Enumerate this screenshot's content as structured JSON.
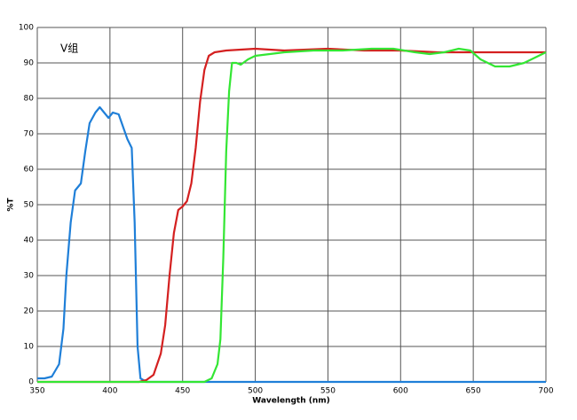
{
  "chart_data": {
    "type": "line",
    "annotation": "V组",
    "x_label": "Wavelength (nm)",
    "y_label": "%T",
    "xlim": [
      350,
      700
    ],
    "ylim": [
      0,
      100
    ],
    "xticks": [
      350,
      400,
      450,
      500,
      550,
      600,
      650,
      700
    ],
    "yticks": [
      0,
      10,
      20,
      30,
      40,
      50,
      60,
      70,
      80,
      90,
      100
    ],
    "grid": true,
    "series": [
      {
        "color": "#1f7fd8",
        "x": [
          350,
          355,
          360,
          365,
          368,
          370,
          373,
          376,
          380,
          383,
          386,
          390,
          393,
          396,
          399,
          402,
          406,
          409,
          412,
          415,
          417,
          419,
          421,
          425,
          430,
          700
        ],
        "values": [
          1,
          1,
          1.5,
          5,
          15,
          30,
          45,
          54,
          56,
          65,
          73,
          76,
          77.5,
          76,
          74.5,
          76,
          75.5,
          72,
          68.5,
          66,
          45,
          10,
          1,
          0,
          0,
          0
        ]
      },
      {
        "color": "#d42020",
        "x": [
          350,
          420,
          425,
          430,
          435,
          438,
          441,
          444,
          447,
          450,
          453,
          456,
          459,
          462,
          465,
          468,
          472,
          480,
          500,
          520,
          550,
          575,
          600,
          625,
          650,
          675,
          700
        ],
        "values": [
          0,
          0,
          0.5,
          2,
          8,
          16,
          30,
          42,
          48.5,
          49.5,
          51,
          56,
          66,
          79,
          88,
          92,
          93,
          93.5,
          94,
          93.5,
          94,
          93.5,
          93.5,
          93,
          93,
          93,
          93
        ]
      },
      {
        "color": "#33e633",
        "x": [
          350,
          465,
          470,
          474,
          476,
          478,
          480,
          482,
          484,
          487,
          490,
          495,
          500,
          510,
          520,
          540,
          560,
          580,
          595,
          610,
          620,
          630,
          640,
          648,
          655,
          665,
          675,
          685,
          695,
          700
        ],
        "values": [
          0,
          0,
          1,
          5,
          12,
          35,
          65,
          82,
          90,
          90,
          89.5,
          91,
          92,
          92.5,
          93,
          93.5,
          93.5,
          94,
          94,
          93,
          92.5,
          93,
          94,
          93.5,
          91,
          89,
          89,
          90,
          92,
          93
        ]
      }
    ]
  }
}
